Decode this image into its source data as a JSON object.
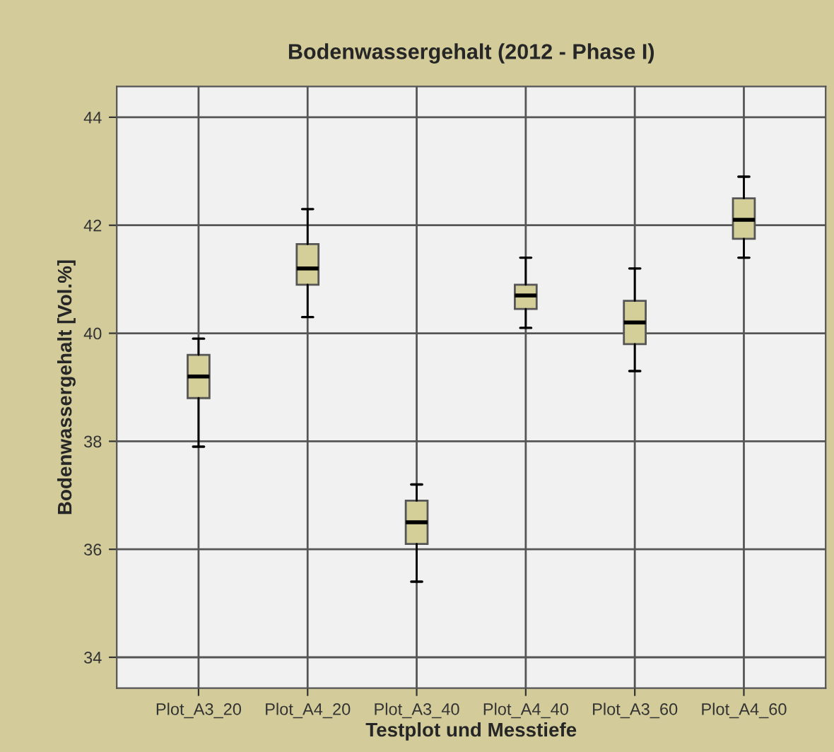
{
  "chart_data": {
    "type": "box",
    "title": "Bodenwassergehalt (2012 - Phase I)",
    "xlabel": "Testplot und Messtiefe",
    "ylabel": "Bodenwassergehalt [Vol.%]",
    "categories": [
      "Plot_A3_20",
      "Plot_A4_20",
      "Plot_A3_40",
      "Plot_A4_40",
      "Plot_A3_60",
      "Plot_A4_60"
    ],
    "boxes": [
      {
        "low": 37.9,
        "q1": 38.8,
        "median": 39.2,
        "q3": 39.6,
        "high": 39.9
      },
      {
        "low": 40.3,
        "q1": 40.9,
        "median": 41.2,
        "q3": 41.65,
        "high": 42.3
      },
      {
        "low": 35.4,
        "q1": 36.1,
        "median": 36.5,
        "q3": 36.9,
        "high": 37.2
      },
      {
        "low": 40.1,
        "q1": 40.45,
        "median": 40.7,
        "q3": 40.9,
        "high": 41.4
      },
      {
        "low": 39.3,
        "q1": 39.8,
        "median": 40.2,
        "q3": 40.6,
        "high": 41.2
      },
      {
        "low": 41.4,
        "q1": 41.75,
        "median": 42.1,
        "q3": 42.5,
        "high": 42.9
      }
    ],
    "color": "#d4cf98",
    "ylim": [
      33.43,
      44.57
    ],
    "yticks": [
      34,
      36,
      38,
      40,
      42,
      44
    ],
    "grid": true
  }
}
